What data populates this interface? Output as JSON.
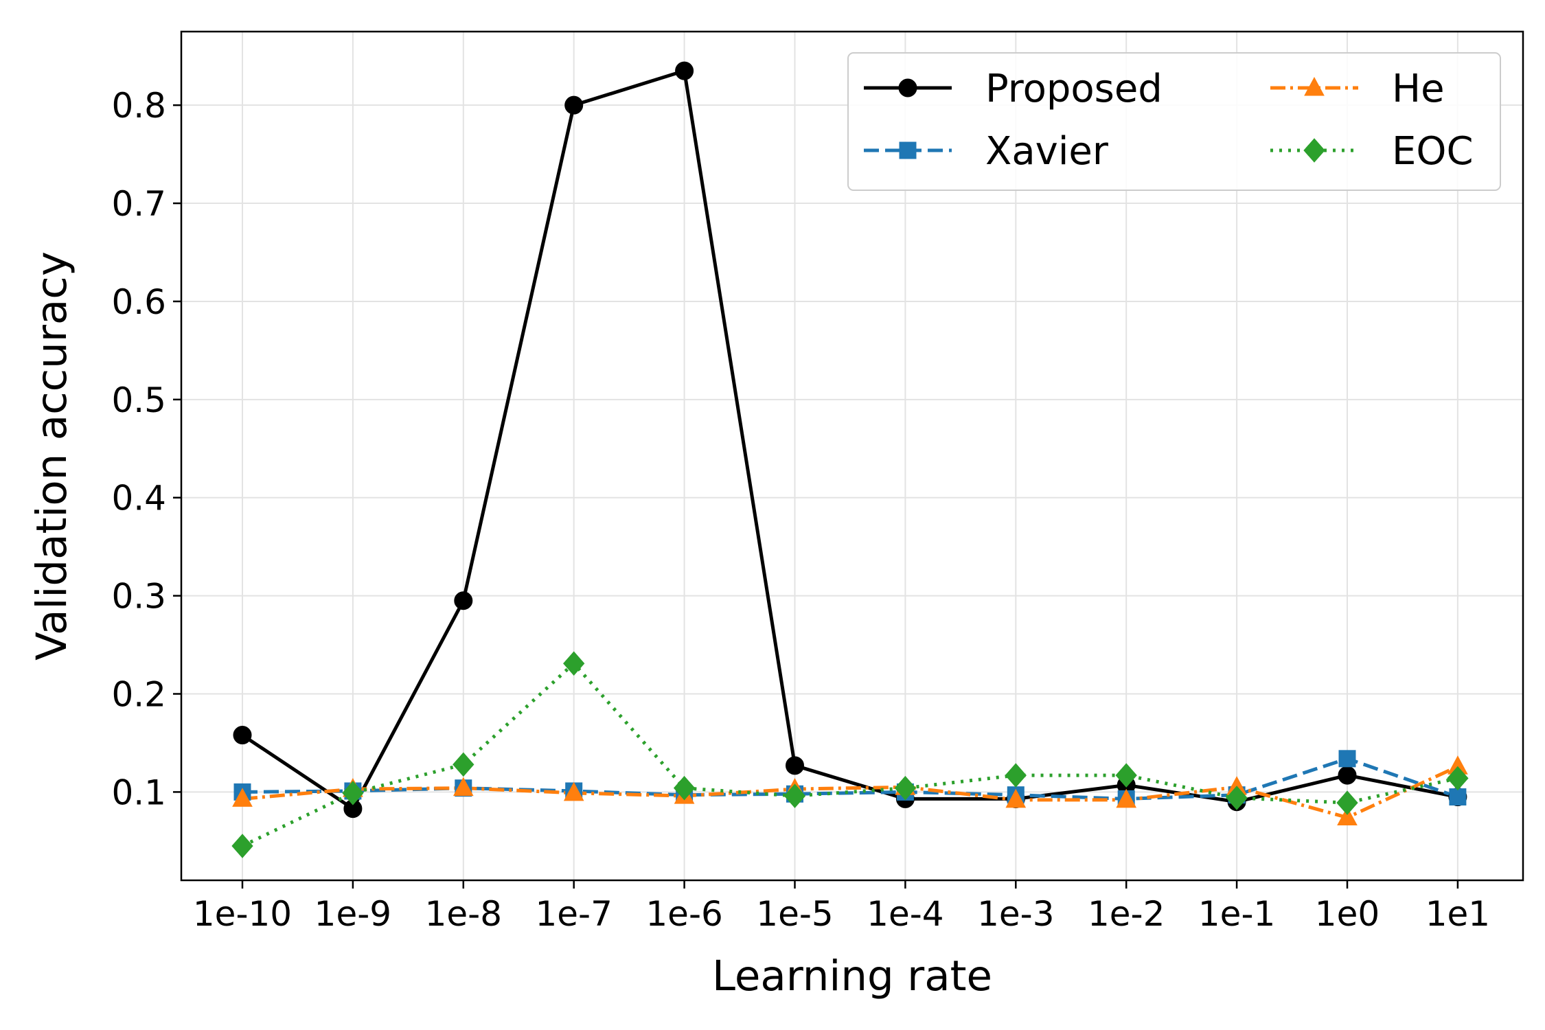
{
  "chart_data": {
    "type": "line",
    "title": "",
    "xlabel": "Learning rate",
    "ylabel": "Validation accuracy",
    "categories": [
      "1e-10",
      "1e-9",
      "1e-8",
      "1e-7",
      "1e-6",
      "1e-5",
      "1e-4",
      "1e-3",
      "1e-2",
      "1e-1",
      "1e0",
      "1e1"
    ],
    "yticks": [
      "0.1",
      "0.2",
      "0.3",
      "0.4",
      "0.5",
      "0.6",
      "0.7",
      "0.8"
    ],
    "ylim": [
      0.01,
      0.875
    ],
    "grid": true,
    "legend_position": "top-right",
    "legend_columns": 2,
    "series": [
      {
        "name": "Proposed",
        "color": "#000000",
        "dash": "solid",
        "marker": "circle",
        "values": [
          0.158,
          0.083,
          0.295,
          0.8,
          0.835,
          0.127,
          0.093,
          0.093,
          0.107,
          0.09,
          0.117,
          0.095
        ]
      },
      {
        "name": "Xavier",
        "color": "#1f77b4",
        "dash": "dashed",
        "marker": "square",
        "values": [
          0.1,
          0.101,
          0.104,
          0.101,
          0.097,
          0.098,
          0.1,
          0.097,
          0.093,
          0.097,
          0.134,
          0.095
        ]
      },
      {
        "name": "He",
        "color": "#ff7f0e",
        "dash": "dashdot",
        "marker": "triangle",
        "values": [
          0.093,
          0.103,
          0.104,
          0.099,
          0.096,
          0.103,
          0.105,
          0.092,
          0.092,
          0.105,
          0.074,
          0.126
        ]
      },
      {
        "name": "EOC",
        "color": "#2ca02c",
        "dash": "dotted",
        "marker": "diamond",
        "values": [
          0.045,
          0.099,
          0.128,
          0.231,
          0.104,
          0.096,
          0.104,
          0.117,
          0.117,
          0.094,
          0.089,
          0.114
        ]
      }
    ]
  }
}
